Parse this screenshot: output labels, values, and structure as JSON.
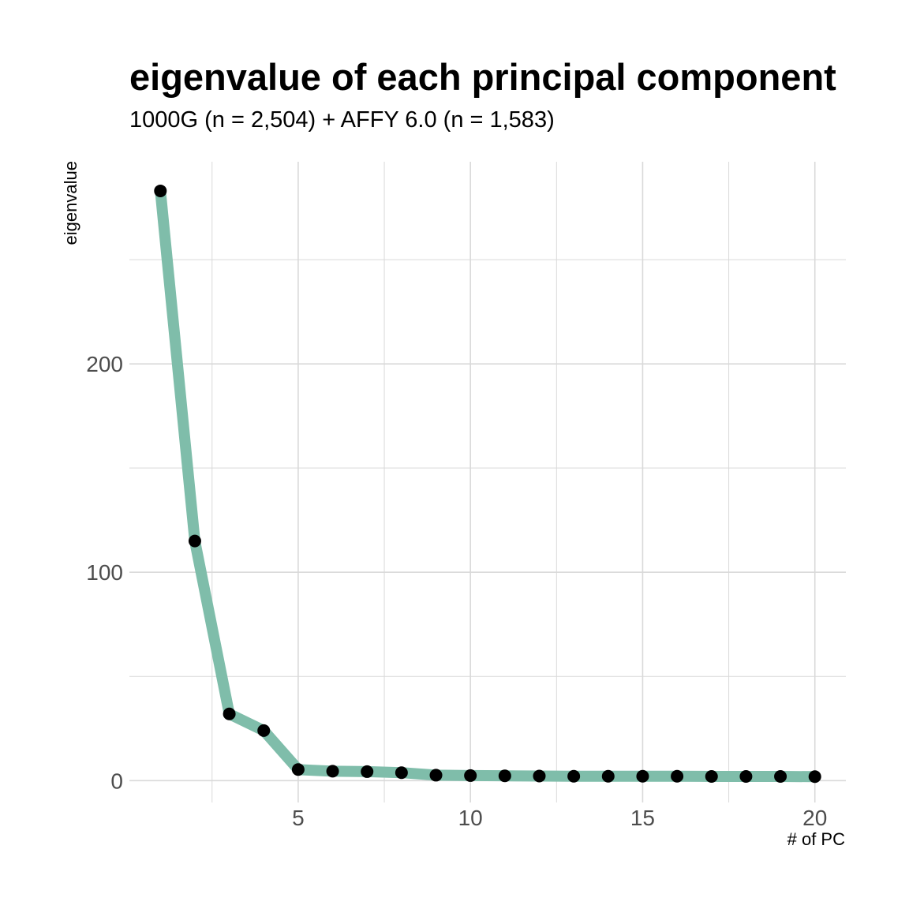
{
  "chart_data": {
    "type": "line",
    "title": "eigenvalue of each principal component",
    "subtitle": "1000G (n = 2,504) + AFFY 6.0 (n = 1,583)",
    "xlabel": "# of PC",
    "ylabel": "eigenvalue",
    "x": [
      1,
      2,
      3,
      4,
      5,
      6,
      7,
      8,
      9,
      10,
      11,
      12,
      13,
      14,
      15,
      16,
      17,
      18,
      19,
      20
    ],
    "y": [
      283,
      115,
      32,
      24,
      5.3,
      4.5,
      4.3,
      3.8,
      2.6,
      2.4,
      2.3,
      2.2,
      2.1,
      2.1,
      2.1,
      2.1,
      2.0,
      2.0,
      2.0,
      1.9
    ],
    "xlim": [
      0.1,
      20.9
    ],
    "ylim": [
      -10.5,
      297
    ],
    "xticks": [
      5,
      10,
      15,
      20
    ],
    "yticks": [
      0,
      100,
      200
    ],
    "grid": true,
    "line_color": "#7fbdaa",
    "point_color": "#000000",
    "grid_color": "#d9d9d9",
    "legend": "none"
  }
}
